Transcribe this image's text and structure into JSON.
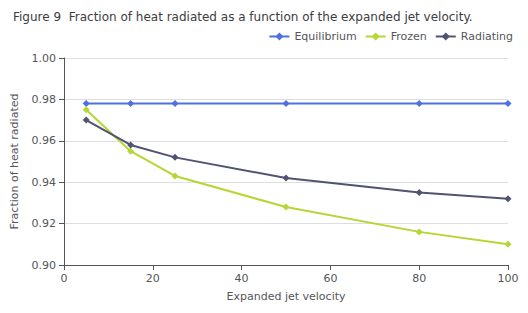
{
  "chart_data": {
    "type": "line",
    "title": "Figure 9  Fraction of heat radiated as a function of the expanded jet velocity.",
    "xlabel": "Expanded jet velocity",
    "ylabel": "Fraction of heat radiated",
    "x": [
      5,
      15,
      25,
      50,
      80,
      100
    ],
    "series": [
      {
        "name": "Equilibrium",
        "values": [
          0.978,
          0.978,
          0.978,
          0.978,
          0.978,
          0.978
        ]
      },
      {
        "name": "Frozen",
        "values": [
          0.975,
          0.955,
          0.943,
          0.928,
          0.916,
          0.91
        ]
      },
      {
        "name": "Radiating",
        "values": [
          0.97,
          0.958,
          0.952,
          0.942,
          0.935,
          0.932
        ]
      }
    ],
    "xlim": [
      0,
      100
    ],
    "xticks": [
      0,
      20,
      40,
      60,
      80,
      100
    ],
    "ylim": [
      0.9,
      1.0
    ],
    "yticks": [
      {
        "value": 0.9,
        "label": "0.90"
      },
      0.92,
      0.94,
      0.96,
      0.98,
      {
        "value": 1,
        "label": "1.00"
      }
    ],
    "marker": "diamond",
    "grid": true,
    "legend": "upper right"
  }
}
